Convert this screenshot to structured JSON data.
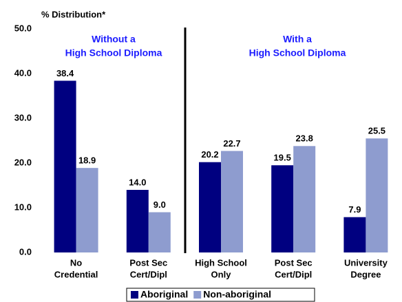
{
  "chart_data": {
    "type": "bar",
    "title": "% Distribution*",
    "annotations": [
      [
        "Without a",
        "High School Diploma"
      ],
      [
        "With a",
        "High School Diploma"
      ]
    ],
    "categories": [
      [
        "No",
        "Credential"
      ],
      [
        "Post Sec",
        "Cert/Dipl"
      ],
      [
        "High School",
        "Only"
      ],
      [
        "Post Sec",
        "Cert/Dipl"
      ],
      [
        "University",
        "Degree"
      ]
    ],
    "series": [
      {
        "name": "Aboriginal",
        "color": "#000080",
        "values": [
          38.4,
          14.0,
          20.2,
          19.5,
          7.9
        ],
        "value_labels": [
          "38.4",
          "14.0",
          "20.2",
          "19.5",
          "7.9"
        ]
      },
      {
        "name": "Non-aboriginal",
        "color": "#8e9ccf",
        "values": [
          18.9,
          9.0,
          22.7,
          23.8,
          25.5
        ],
        "value_labels": [
          "18.9",
          "9.0",
          "22.7",
          "23.8",
          "25.5"
        ]
      }
    ],
    "ylim": [
      0,
      50
    ],
    "yticks": [
      {
        "value": 0,
        "label": "0.0"
      },
      {
        "value": 10,
        "label": "10.0"
      },
      {
        "value": 20,
        "label": "20.0"
      },
      {
        "value": 30,
        "label": "30.0"
      },
      {
        "value": 40,
        "label": "40.0"
      },
      {
        "value": 50,
        "label": "50.0"
      }
    ],
    "grid": false,
    "legend": "bottom"
  }
}
